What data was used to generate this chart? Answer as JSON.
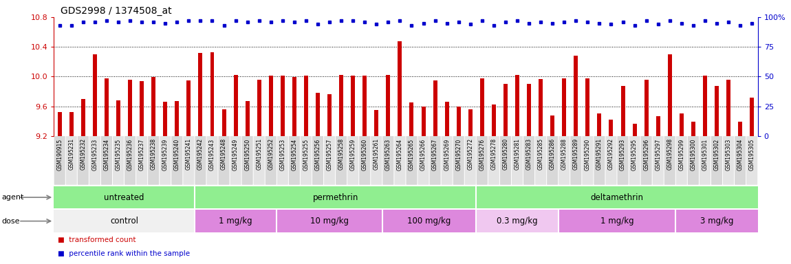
{
  "title": "GDS2998 / 1374508_at",
  "samples": [
    "GSM190915",
    "GSM195231",
    "GSM195232",
    "GSM195233",
    "GSM195234",
    "GSM195235",
    "GSM195236",
    "GSM195237",
    "GSM195238",
    "GSM195239",
    "GSM195240",
    "GSM195241",
    "GSM195242",
    "GSM195243",
    "GSM195248",
    "GSM195249",
    "GSM195250",
    "GSM195251",
    "GSM195252",
    "GSM195253",
    "GSM195254",
    "GSM195255",
    "GSM195256",
    "GSM195257",
    "GSM195258",
    "GSM195259",
    "GSM195260",
    "GSM195261",
    "GSM195263",
    "GSM195264",
    "GSM195265",
    "GSM195266",
    "GSM195267",
    "GSM195269",
    "GSM195270",
    "GSM195272",
    "GSM195276",
    "GSM195278",
    "GSM195280",
    "GSM195281",
    "GSM195283",
    "GSM195285",
    "GSM195286",
    "GSM195288",
    "GSM195289",
    "GSM195290",
    "GSM195291",
    "GSM195292",
    "GSM195293",
    "GSM195295",
    "GSM195296",
    "GSM195297",
    "GSM195298",
    "GSM195299",
    "GSM195300",
    "GSM195301",
    "GSM195302",
    "GSM195303",
    "GSM195304",
    "GSM195305"
  ],
  "bar_values": [
    9.52,
    9.52,
    9.7,
    10.3,
    9.98,
    9.68,
    9.96,
    9.94,
    9.99,
    9.66,
    9.67,
    9.95,
    10.32,
    10.33,
    9.56,
    10.02,
    9.67,
    9.96,
    10.01,
    10.01,
    9.99,
    10.01,
    9.78,
    9.76,
    10.02,
    10.01,
    10.01,
    9.55,
    10.02,
    10.48,
    9.65,
    9.6,
    9.95,
    9.66,
    9.6,
    9.56,
    9.98,
    9.62,
    9.9,
    10.02,
    9.9,
    9.97,
    9.48,
    9.98,
    10.28,
    9.98,
    9.5,
    9.42,
    9.87,
    9.36,
    9.96,
    9.47,
    10.3,
    9.5,
    9.39,
    10.01,
    9.87,
    9.96,
    9.39,
    9.72
  ],
  "percentile_values": [
    93,
    93,
    96,
    96,
    97,
    96,
    97,
    96,
    96,
    95,
    96,
    97,
    97,
    97,
    93,
    97,
    96,
    97,
    96,
    97,
    96,
    97,
    94,
    96,
    97,
    97,
    96,
    94,
    96,
    97,
    93,
    95,
    97,
    95,
    96,
    94,
    97,
    93,
    96,
    97,
    95,
    96,
    95,
    96,
    97,
    96,
    95,
    94,
    96,
    93,
    97,
    94,
    97,
    95,
    93,
    97,
    95,
    96,
    93,
    95
  ],
  "ymin": 9.2,
  "ymax": 10.8,
  "yticks_left": [
    9.2,
    9.6,
    10.0,
    10.4,
    10.8
  ],
  "yticks_right": [
    0,
    25,
    50,
    75,
    100
  ],
  "bar_color": "#cc0000",
  "dot_color": "#0000cc",
  "agent_groups": [
    {
      "label": "untreated",
      "start": 0,
      "end": 12,
      "color": "#90ee90"
    },
    {
      "label": "permethrin",
      "start": 12,
      "end": 36,
      "color": "#90ee90"
    },
    {
      "label": "deltamethrin",
      "start": 36,
      "end": 60,
      "color": "#90ee90"
    }
  ],
  "dose_groups": [
    {
      "label": "control",
      "start": 0,
      "end": 12,
      "color": "#f0f0f0"
    },
    {
      "label": "1 mg/kg",
      "start": 12,
      "end": 19,
      "color": "#dd88dd"
    },
    {
      "label": "10 mg/kg",
      "start": 19,
      "end": 28,
      "color": "#dd88dd"
    },
    {
      "label": "100 mg/kg",
      "start": 28,
      "end": 36,
      "color": "#dd88dd"
    },
    {
      "label": "0.3 mg/kg",
      "start": 36,
      "end": 43,
      "color": "#f0c8f0"
    },
    {
      "label": "1 mg/kg",
      "start": 43,
      "end": 53,
      "color": "#dd88dd"
    },
    {
      "label": "3 mg/kg",
      "start": 53,
      "end": 60,
      "color": "#dd88dd"
    }
  ],
  "xlabel_agent": "agent",
  "xlabel_dose": "dose"
}
